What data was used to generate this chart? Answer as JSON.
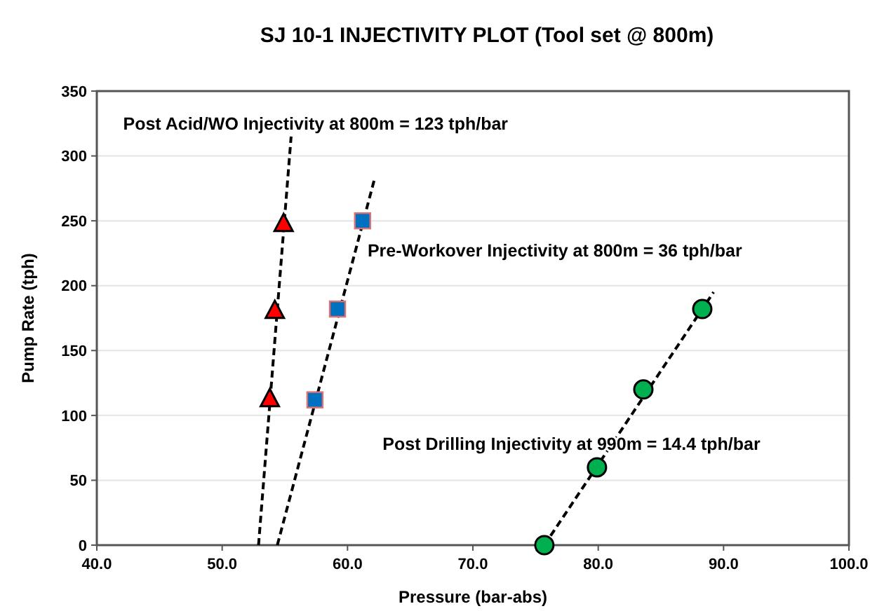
{
  "chart_data": {
    "type": "scatter",
    "title": "SJ 10-1 INJECTIVITY PLOT (Tool set @ 800m)",
    "xlabel": "Pressure (bar-abs)",
    "ylabel": "Pump Rate (tph)",
    "xlim": [
      40,
      100
    ],
    "xticks": [
      {
        "value": 40,
        "label": "40.0"
      },
      {
        "value": 50,
        "label": "50.0"
      },
      {
        "value": 60,
        "label": "60.0"
      },
      {
        "value": 70,
        "label": "70.0"
      },
      {
        "value": 80,
        "label": "80.0"
      },
      {
        "value": 90,
        "label": "90.0"
      },
      {
        "value": 100,
        "label": "100.0"
      }
    ],
    "ylim": [
      0,
      350
    ],
    "yticks": [
      0,
      50,
      100,
      150,
      200,
      250,
      300,
      350
    ],
    "grid": "y",
    "series": [
      {
        "type": "line",
        "color": "#000000",
        "line_style": "dashed",
        "marker": "none",
        "x": [
          52.9,
          55.5
        ],
        "values": [
          0,
          315
        ]
      },
      {
        "type": "line",
        "color": "#000000",
        "line_style": "dashed",
        "marker": "none",
        "x": [
          54.4,
          62.2
        ],
        "values": [
          0,
          284
        ]
      },
      {
        "type": "line",
        "color": "#000000",
        "line_style": "dashed",
        "marker": "none",
        "x": [
          75.7,
          89.2
        ],
        "values": [
          0,
          195
        ]
      },
      {
        "color": "#ff0000",
        "marker": "triangle",
        "x": [
          53.8,
          54.2,
          54.9
        ],
        "values": [
          112,
          180,
          247
        ]
      },
      {
        "color": "#0070c0",
        "marker": "square",
        "x": [
          57.4,
          59.2,
          61.2
        ],
        "values": [
          112,
          182,
          250
        ]
      },
      {
        "color": "#00b050",
        "marker": "circle",
        "x": [
          75.7,
          79.9,
          83.6,
          88.3
        ],
        "values": [
          0,
          60,
          120,
          182
        ]
      }
    ],
    "annotations": [
      "Post Acid/WO Injectivity at 800m = 123 tph/bar",
      "Pre-Workover Injectivity at 800m = 36 tph/bar",
      "Post Drilling Injectivity at 990m = 14.4 tph/bar"
    ]
  }
}
